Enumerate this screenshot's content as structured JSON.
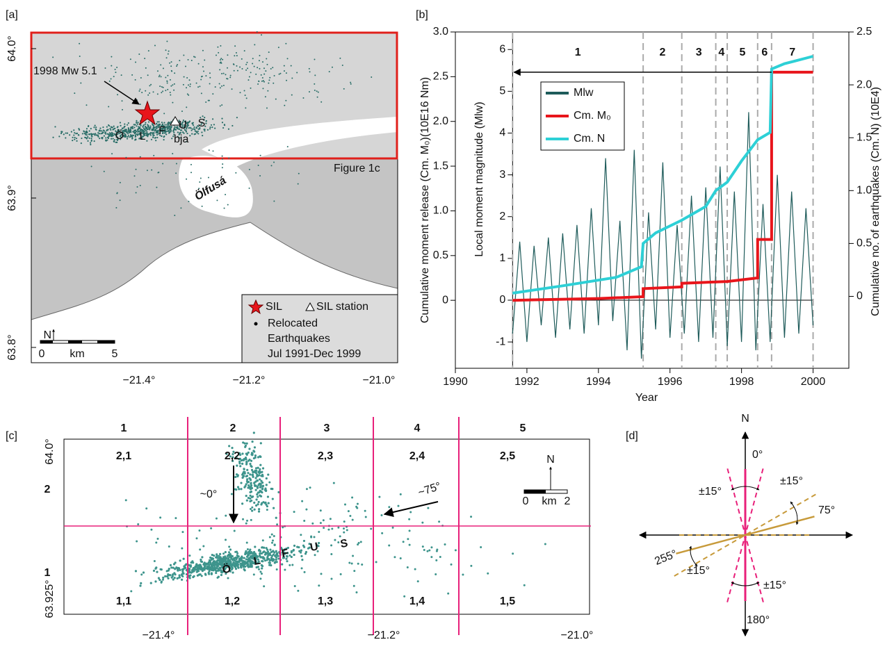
{
  "panel_a": {
    "label": "[a]",
    "lat_ticks": [
      "64.0°",
      "63.9°",
      "63.8°"
    ],
    "lon_ticks": [
      "−21.4°",
      "−21.2°",
      "−21.0°"
    ],
    "event": "1998 Mw 5.1",
    "region_letters": [
      "Ö",
      "L",
      "F",
      "U",
      "S"
    ],
    "station": "bja",
    "inset_label": "Figure 1c",
    "river": "Ölfusá",
    "legend": {
      "sil": "SIL",
      "station": "SIL station",
      "relocated": [
        "Relocated",
        "Earthquakes",
        "Jul 1991-Dec 1999"
      ]
    },
    "scale": {
      "north": "N",
      "zero": "0",
      "unit": "km",
      "max": "5"
    }
  },
  "chart_data": {
    "type": "line",
    "label": "[b]",
    "xlabel": "Year",
    "ylabel": "Cumulative moment release (Cm. M₀)(10E16 Nm)",
    "y3label": "Local moment magnitude (Mlw)",
    "y2label": "Cumulative no. of earthquakes (Cm. N) (10E4)",
    "xlim": [
      1990,
      2001
    ],
    "xticks": [
      1990,
      1992,
      1994,
      1996,
      1998,
      2000
    ],
    "ylim": [
      -0.76,
      3.0
    ],
    "yticks": [
      0,
      0.5,
      {
        "value": 1,
        "label": "1.0"
      },
      1.5,
      {
        "value": 2,
        "label": "2.0"
      },
      2.5,
      {
        "value": 3,
        "label": "3.0"
      }
    ],
    "y2lim": [
      -0.68,
      2.5
    ],
    "y2ticks": [
      0,
      0.5,
      {
        "value": 1,
        "label": "1.0"
      },
      1.5,
      {
        "value": 2,
        "label": "2.0"
      },
      2.5
    ],
    "y3lim": [
      -1.63,
      6.42
    ],
    "y3ticks": [
      -1,
      0,
      1,
      2,
      3,
      4,
      5,
      6
    ],
    "periods": {
      "x": [
        1991.6,
        1995.25,
        1996.33,
        1997.28,
        1997.6,
        1998.45,
        1998.84,
        2000.0
      ],
      "labels": [
        "1",
        "2",
        "3",
        "4",
        "5",
        "6",
        "7"
      ]
    },
    "series": [
      {
        "name": "Mlw",
        "color": "#1e5b5a",
        "axis": "y3",
        "x": [
          1991.6,
          1991.8,
          1992.0,
          1992.2,
          1992.4,
          1992.6,
          1992.8,
          1993.0,
          1993.2,
          1993.4,
          1993.6,
          1993.8,
          1994.0,
          1994.2,
          1994.4,
          1994.6,
          1994.8,
          1995.0,
          1995.2,
          1995.4,
          1995.6,
          1995.8,
          1996.0,
          1996.2,
          1996.4,
          1996.6,
          1996.8,
          1997.0,
          1997.2,
          1997.4,
          1997.6,
          1997.8,
          1998.0,
          1998.2,
          1998.4,
          1998.6,
          1998.8,
          1999.0,
          1999.2,
          1999.4,
          1999.6,
          1999.8,
          2000.0
        ],
        "values": [
          -0.8,
          1.4,
          -1.0,
          1.3,
          -0.6,
          1.5,
          -0.9,
          1.6,
          -0.7,
          1.8,
          -0.8,
          2.2,
          -0.6,
          3.4,
          -0.5,
          1.9,
          -1.2,
          3.6,
          -1.4,
          2.1,
          -0.7,
          3.3,
          -0.9,
          1.8,
          -0.8,
          2.5,
          -1.0,
          2.7,
          -0.9,
          3.2,
          -1.1,
          2.6,
          -1.0,
          4.5,
          -1.2,
          2.3,
          -1.0,
          3.0,
          -0.9,
          2.6,
          -0.8,
          2.2,
          -0.6
        ]
      },
      {
        "name": "Cm. M₀",
        "color": "#e8151b",
        "axis": "y",
        "x": [
          1991.6,
          1994.0,
          1995.25,
          1995.25,
          1996.33,
          1996.33,
          1997.6,
          1998.45,
          1998.45,
          1998.84,
          1998.84,
          2000.0
        ],
        "values": [
          0,
          0.02,
          0.04,
          0.13,
          0.15,
          0.19,
          0.21,
          0.25,
          0.68,
          0.68,
          2.55,
          2.55
        ]
      },
      {
        "name": "Cm. N",
        "color": "#2dd0d6",
        "axis": "y2",
        "x": [
          1991.6,
          1993.0,
          1994.5,
          1995.2,
          1995.25,
          1995.6,
          1996.33,
          1997.0,
          1997.28,
          1997.6,
          1998.0,
          1998.45,
          1998.8,
          1998.84,
          1999.2,
          2000.0
        ],
        "values": [
          0.03,
          0.1,
          0.18,
          0.28,
          0.5,
          0.6,
          0.72,
          0.85,
          1.0,
          1.08,
          1.28,
          1.48,
          1.55,
          2.15,
          2.2,
          2.27
        ]
      }
    ]
  },
  "panel_c": {
    "label": "[c]",
    "columns": [
      "1",
      "2",
      "3",
      "4",
      "5"
    ],
    "rows": [
      "2",
      "1"
    ],
    "cells": [
      [
        "2,1",
        "2,2",
        "2,3",
        "2,4",
        "2,5"
      ],
      [
        "1,1",
        "1,2",
        "1,3",
        "1,4",
        "1,5"
      ]
    ],
    "lat_ticks": [
      "64.0°",
      "63.925°"
    ],
    "lon_ticks": [
      "−21.4°",
      "−21.2°",
      "−21.0°"
    ],
    "arrows": [
      "~0°",
      "~75°"
    ],
    "region_letters": [
      "Ö",
      "L",
      "F",
      "U",
      "S"
    ],
    "scale": {
      "north": "N",
      "zero": "0",
      "unit": "km",
      "max": "2"
    }
  },
  "panel_d": {
    "label": "[d]",
    "north": "N",
    "angles": [
      "0°",
      "75°",
      "255°",
      "180°"
    ],
    "tolerance": [
      "±15°",
      "±15°",
      "±15°",
      "±15°"
    ]
  }
}
